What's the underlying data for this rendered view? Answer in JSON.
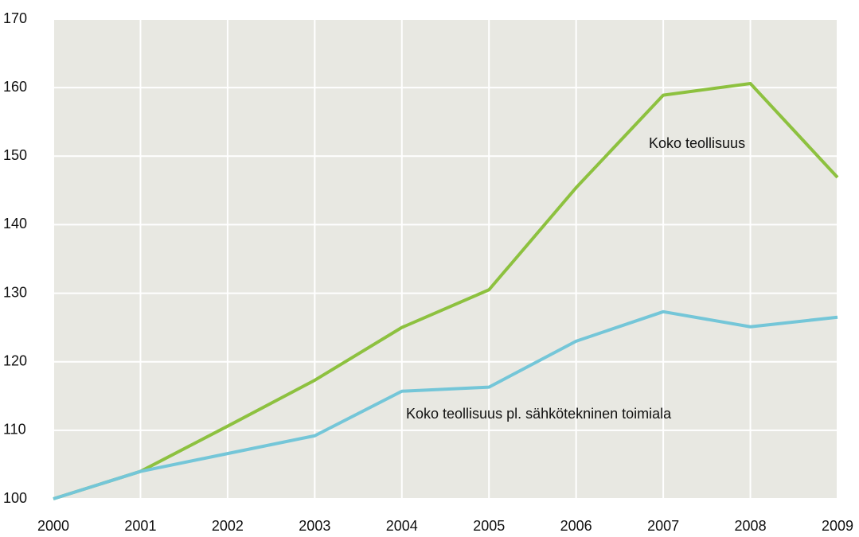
{
  "chart_data": {
    "type": "line",
    "x": [
      2000,
      2001,
      2002,
      2003,
      2004,
      2005,
      2006,
      2007,
      2008,
      2009
    ],
    "series": [
      {
        "name": "Koko teollisuus",
        "color": "#8dc13f",
        "values": [
          100,
          104,
          110.6,
          117.3,
          125,
          130.5,
          145.4,
          158.9,
          160.6,
          146.9
        ]
      },
      {
        "name": "Koko teollisuus pl. sähkötekninen toimiala",
        "color": "#74c6d8",
        "values": [
          100,
          104,
          106.6,
          109.2,
          115.7,
          116.3,
          123,
          127.3,
          125.1,
          126.5
        ]
      }
    ],
    "xlim": [
      2000,
      2009
    ],
    "xticks": [
      2000,
      2001,
      2002,
      2003,
      2004,
      2005,
      2006,
      2007,
      2008,
      2009
    ],
    "ylim": [
      100,
      170
    ],
    "yticks": [
      100,
      110,
      120,
      130,
      140,
      150,
      160,
      170
    ],
    "grid": true
  }
}
